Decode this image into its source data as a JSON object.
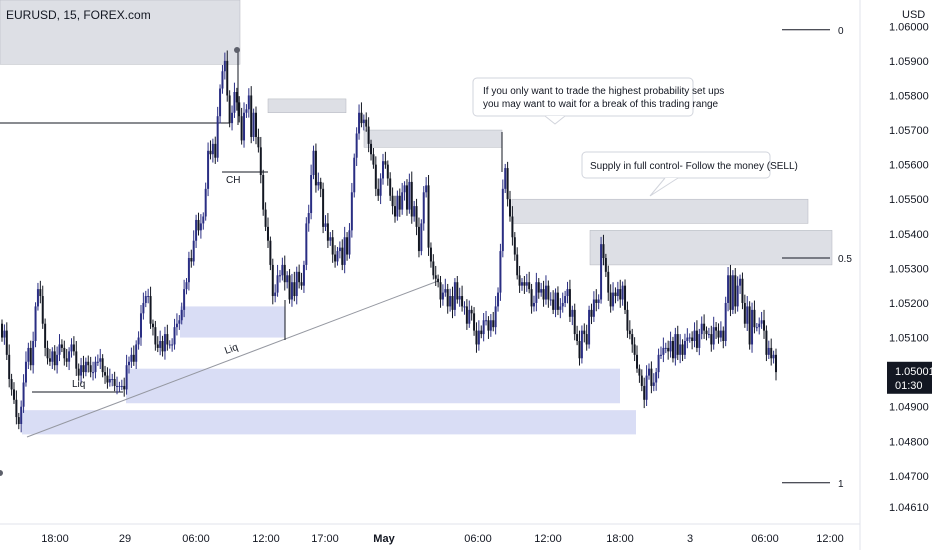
{
  "header": {
    "symbol_title": "EURUSD, 15, FOREX.com"
  },
  "price_axis": {
    "currency": "USD",
    "ticks": [
      "1.06000",
      "1.05900",
      "1.05800",
      "1.05700",
      "1.05600",
      "1.05500",
      "1.05400",
      "1.05300",
      "1.05200",
      "1.05100",
      "1.04900",
      "1.04800",
      "1.04700",
      "1.04610"
    ],
    "current_price": "1.05001",
    "countdown": "01:30",
    "current_price_color": "#131722"
  },
  "time_axis": {
    "ticks": [
      "18:00",
      "29",
      "06:00",
      "12:00",
      "17:00",
      "May",
      "06:00",
      "12:00",
      "18:00",
      "3",
      "06:00",
      "12:00"
    ]
  },
  "fib_levels": [
    {
      "label": "0",
      "price": 1.0599
    },
    {
      "label": "0.5",
      "price": 1.0533
    },
    {
      "label": "1",
      "price": 1.0468
    }
  ],
  "annotations": {
    "note_1_line_1": "If you only want to trade the highest probability set ups",
    "note_1_line_2": "you may want to wait for a break of this trading range",
    "note_2": "Supply in full control- Follow the money (SELL)",
    "liq_1": "Liq",
    "liq_2": "Liq",
    "ch": "CH"
  },
  "colors": {
    "up_candle": "#2a2e83",
    "down_candle": "#131722",
    "supply_zone": "#d1d4dc",
    "demand_zone": "#c5cbf0",
    "background": "#ffffff"
  },
  "chart_data": {
    "type": "candlestick",
    "symbol": "EURUSD",
    "timeframe": "15",
    "x_range": [
      "18:00",
      "12:00"
    ],
    "ylim": [
      1.0461,
      1.0605
    ],
    "last_close": 1.05001,
    "close_series": [
      1.051,
      1.0512,
      1.0505,
      1.0498,
      1.0495,
      1.0492,
      1.0487,
      1.0485,
      1.049,
      1.0497,
      1.0503,
      1.0507,
      1.0502,
      1.0509,
      1.0519,
      1.0524,
      1.0522,
      1.0514,
      1.0507,
      1.0504,
      1.0503,
      1.0506,
      1.0502,
      1.0505,
      1.0508,
      1.0507,
      1.0504,
      1.0503,
      1.0506,
      1.0508,
      1.0506,
      1.0501,
      1.0499,
      1.0502,
      1.05,
      1.0503,
      1.0502,
      1.05,
      1.05,
      1.0503,
      1.0503,
      1.0504,
      1.05,
      1.0499,
      1.0497,
      1.0498,
      1.0498,
      1.0496,
      1.0496,
      1.0496,
      1.0496,
      1.0495,
      1.0502,
      1.0503,
      1.0505,
      1.0503,
      1.0508,
      1.051,
      1.0517,
      1.052,
      1.0522,
      1.0522,
      1.0514,
      1.0513,
      1.0508,
      1.0507,
      1.0509,
      1.0506,
      1.0511,
      1.0508,
      1.0508,
      1.0508,
      1.0513,
      1.0514,
      1.0515,
      1.0518,
      1.0524,
      1.0526,
      1.0533,
      1.0532,
      1.0538,
      1.0544,
      1.0541,
      1.0543,
      1.0545,
      1.0553,
      1.0564,
      1.0563,
      1.0566,
      1.0562,
      1.0574,
      1.0582,
      1.0587,
      1.059,
      1.058,
      1.0572,
      1.0575,
      1.0581,
      1.0578,
      1.0574,
      1.0567,
      1.0575,
      1.0576,
      1.058,
      1.0568,
      1.0575,
      1.0568,
      1.0565,
      1.0557,
      1.0547,
      1.0542,
      1.0538,
      1.0531,
      1.0522,
      1.0523,
      1.0528,
      1.0528,
      1.0531,
      1.0526,
      1.0528,
      1.0521,
      1.0526,
      1.0522,
      1.0529,
      1.0526,
      1.0525,
      1.0531,
      1.0543,
      1.0546,
      1.0557,
      1.0564,
      1.0554,
      1.0555,
      1.0553,
      1.0542,
      1.0543,
      1.0538,
      1.0539,
      1.0534,
      1.0532,
      1.0535,
      1.0536,
      1.0531,
      1.0539,
      1.0534,
      1.0541,
      1.0552,
      1.0562,
      1.0569,
      1.0575,
      1.0572,
      1.0573,
      1.0571,
      1.0566,
      1.0563,
      1.056,
      1.0553,
      1.0551,
      1.0556,
      1.0561,
      1.056,
      1.0556,
      1.0551,
      1.0548,
      1.0545,
      1.0551,
      1.0547,
      1.0552,
      1.0554,
      1.0547,
      1.0555,
      1.0545,
      1.0548,
      1.0542,
      1.0535,
      1.0543,
      1.0552,
      1.0554,
      1.0536,
      1.0532,
      1.0528,
      1.0527,
      1.0526,
      1.0521,
      1.0523,
      1.0524,
      1.0519,
      1.0522,
      1.0518,
      1.0526,
      1.0521,
      1.0522,
      1.0519,
      1.0519,
      1.0514,
      1.0518,
      1.0517,
      1.0512,
      1.0508,
      1.0512,
      1.0511,
      1.0515,
      1.0515,
      1.0512,
      1.0515,
      1.0513,
      1.0519,
      1.0523,
      1.0535,
      1.0553,
      1.0559,
      1.055,
      1.0545,
      1.0539,
      1.0534,
      1.0528,
      1.0525,
      1.0526,
      1.0525,
      1.0526,
      1.0524,
      1.0519,
      1.052,
      1.0526,
      1.0523,
      1.0524,
      1.0521,
      1.0525,
      1.0521,
      1.0521,
      1.0518,
      1.0523,
      1.0518,
      1.0519,
      1.052,
      1.0522,
      1.0524,
      1.0516,
      1.0518,
      1.0511,
      1.0509,
      1.0504,
      1.0512,
      1.0511,
      1.0508,
      1.0518,
      1.0516,
      1.0521,
      1.052,
      1.0521,
      1.0537,
      1.0533,
      1.0529,
      1.0523,
      1.0519,
      1.0523,
      1.0522,
      1.0524,
      1.0521,
      1.0525,
      1.0518,
      1.0512,
      1.0511,
      1.0508,
      1.0505,
      1.0501,
      1.0499,
      1.0496,
      1.0492,
      1.0499,
      1.0501,
      1.0496,
      1.0497,
      1.05,
      1.0505,
      1.0505,
      1.0507,
      1.0507,
      1.0506,
      1.0509,
      1.0504,
      1.0511,
      1.0505,
      1.0508,
      1.0505,
      1.0509,
      1.051,
      1.051,
      1.0509,
      1.0512,
      1.0507,
      1.0511,
      1.0514,
      1.0512,
      1.0511,
      1.0511,
      1.0508,
      1.0513,
      1.0512,
      1.051,
      1.0512,
      1.0509,
      1.052,
      1.0528,
      1.0518,
      1.0528,
      1.0519,
      1.0525,
      1.0527,
      1.052,
      1.0514,
      1.0519,
      1.0508,
      1.0518,
      1.0513,
      1.0513,
      1.0514,
      1.0515,
      1.0512,
      1.0505,
      1.0507,
      1.0504,
      1.0505,
      1.05
    ],
    "supply_zones": [
      {
        "low": 1.0589,
        "high": 1.0608
      },
      {
        "low": 1.0575,
        "high": 1.0579
      },
      {
        "low": 1.0565,
        "high": 1.057
      },
      {
        "low": 1.0543,
        "high": 1.055
      },
      {
        "low": 1.0531,
        "high": 1.0541
      }
    ],
    "demand_zones": [
      {
        "low": 1.051,
        "high": 1.0519
      },
      {
        "low": 1.0491,
        "high": 1.0501
      },
      {
        "low": 1.0482,
        "high": 1.0489
      }
    ],
    "fib_retracement": {
      "level_0": 1.0599,
      "level_0_5": 1.0533,
      "level_1": 1.0468
    },
    "grid": false
  }
}
